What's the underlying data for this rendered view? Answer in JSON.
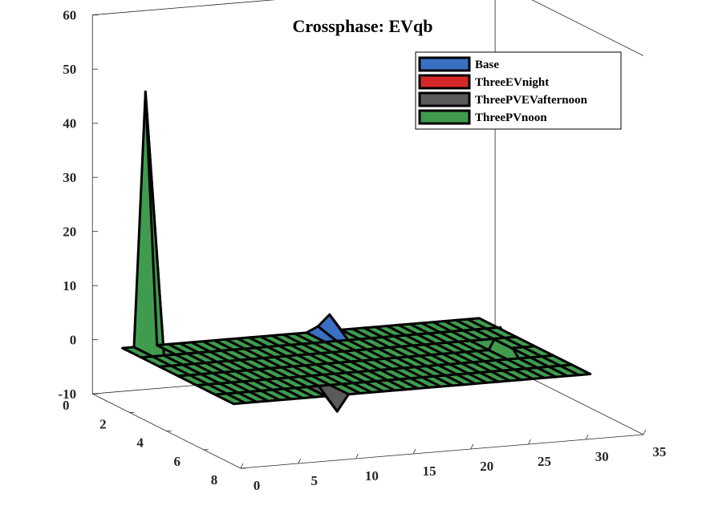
{
  "chart_data": {
    "type": "surface3d",
    "title": "Crossphase: EVqb",
    "x_axis": {
      "ticks": [
        0,
        5,
        10,
        15,
        20,
        25,
        30,
        35
      ],
      "range": [
        0,
        35
      ]
    },
    "y_axis": {
      "ticks": [
        0,
        2,
        4,
        6,
        8
      ],
      "range": [
        0,
        8
      ]
    },
    "z_axis": {
      "ticks": [
        -10,
        0,
        10,
        20,
        30,
        40,
        50,
        60
      ],
      "range": [
        -10,
        60
      ]
    },
    "grid": false,
    "legend_position": "top-right",
    "grid_x_range": [
      1,
      32
    ],
    "grid_y_range": [
      1,
      7
    ],
    "series": [
      {
        "name": "Base",
        "color": "#3a6fc4",
        "peaks": [
          {
            "x": 18,
            "y": 1,
            "z": 1
          }
        ]
      },
      {
        "name": "ThreeEVnight",
        "color": "#d62728",
        "peaks": []
      },
      {
        "name": "ThreePVEVafternoon",
        "color": "#5a5a5a",
        "peaks": [
          {
            "x": 10,
            "y": 7,
            "z": -3
          }
        ]
      },
      {
        "name": "ThreePVnoon",
        "color": "#3f9b4e",
        "peaks": [
          {
            "x": 3,
            "y": 1,
            "z": 47
          },
          {
            "x": 19,
            "y": 1,
            "z": 3
          },
          {
            "x": 29,
            "y": 4,
            "z": 4
          }
        ]
      }
    ]
  }
}
